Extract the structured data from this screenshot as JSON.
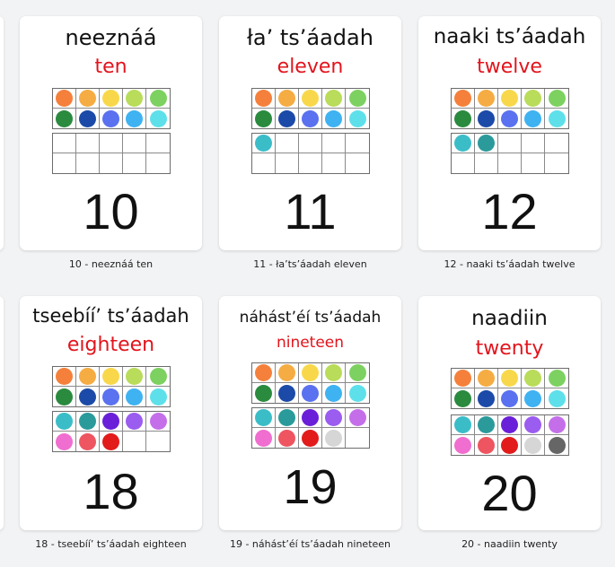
{
  "cards": [
    {
      "native": "neeznáá",
      "english": "ten",
      "numeral": "10",
      "caption": "10 - neeznáá ten",
      "top_frame": [
        "#f5803b",
        "#f5ac43",
        "#f8d84a",
        "#b9dc5a",
        "#7dd160",
        "#2a8a3e",
        "#1b4aa8",
        "#5a71f0",
        "#3fb2f2",
        "#5ee0ea"
      ],
      "bottom_frame": [
        "",
        "",
        "",
        "",
        "",
        "",
        "",
        "",
        "",
        ""
      ]
    },
    {
      "native": "łaʼ tsʼáadah",
      "english": "eleven",
      "numeral": "11",
      "caption": "11 - łaʼtsʼáadah eleven",
      "top_frame": [
        "#f5803b",
        "#f5ac43",
        "#f8d84a",
        "#b9dc5a",
        "#7dd160",
        "#2a8a3e",
        "#1b4aa8",
        "#5a71f0",
        "#3fb2f2",
        "#5ee0ea"
      ],
      "bottom_frame": [
        "#3bbdc8",
        "",
        "",
        "",
        "",
        "",
        "",
        "",
        "",
        ""
      ]
    },
    {
      "native": "naaki tsʼáadah",
      "english": "twelve",
      "numeral": "12",
      "caption": "12 - naaki tsʼáadah twelve",
      "top_frame": [
        "#f5803b",
        "#f5ac43",
        "#f8d84a",
        "#b9dc5a",
        "#7dd160",
        "#2a8a3e",
        "#1b4aa8",
        "#5a71f0",
        "#3fb2f2",
        "#5ee0ea"
      ],
      "bottom_frame": [
        "#3bbdc8",
        "#2b9a9b",
        "",
        "",
        "",
        "",
        "",
        "",
        "",
        ""
      ]
    },
    {
      "native": "tseebííʼ tsʼáadah",
      "english": "eighteen",
      "numeral": "18",
      "caption": "18 - tseebííʼ tsʼáadah eighteen",
      "top_frame": [
        "#f5803b",
        "#f5ac43",
        "#f8d84a",
        "#b9dc5a",
        "#7dd160",
        "#2a8a3e",
        "#1b4aa8",
        "#5a71f0",
        "#3fb2f2",
        "#5ee0ea"
      ],
      "bottom_frame": [
        "#3bbdc8",
        "#2b9a9b",
        "#6a1fd8",
        "#9b5cf0",
        "#c46fe9",
        "#f06ecf",
        "#ee5560",
        "#e21b1b",
        "",
        ""
      ]
    },
    {
      "native": "náhástʼéí tsʼáadah",
      "english": "nineteen",
      "numeral": "19",
      "caption": "19 - náhástʼéí tsʼáadah nineteen",
      "top_frame": [
        "#f5803b",
        "#f5ac43",
        "#f8d84a",
        "#b9dc5a",
        "#7dd160",
        "#2a8a3e",
        "#1b4aa8",
        "#5a71f0",
        "#3fb2f2",
        "#5ee0ea"
      ],
      "bottom_frame": [
        "#3bbdc8",
        "#2b9a9b",
        "#6a1fd8",
        "#9b5cf0",
        "#c46fe9",
        "#f06ecf",
        "#ee5560",
        "#e21b1b",
        "#d6d6d6",
        ""
      ]
    },
    {
      "native": "naadiin",
      "english": "twenty",
      "numeral": "20",
      "caption": "20 - naadiin twenty",
      "top_frame": [
        "#f5803b",
        "#f5ac43",
        "#f8d84a",
        "#b9dc5a",
        "#7dd160",
        "#2a8a3e",
        "#1b4aa8",
        "#5a71f0",
        "#3fb2f2",
        "#5ee0ea"
      ],
      "bottom_frame": [
        "#3bbdc8",
        "#2b9a9b",
        "#6a1fd8",
        "#9b5cf0",
        "#c46fe9",
        "#f06ecf",
        "#ee5560",
        "#e21b1b",
        "#d6d6d6",
        "#666666"
      ]
    }
  ]
}
